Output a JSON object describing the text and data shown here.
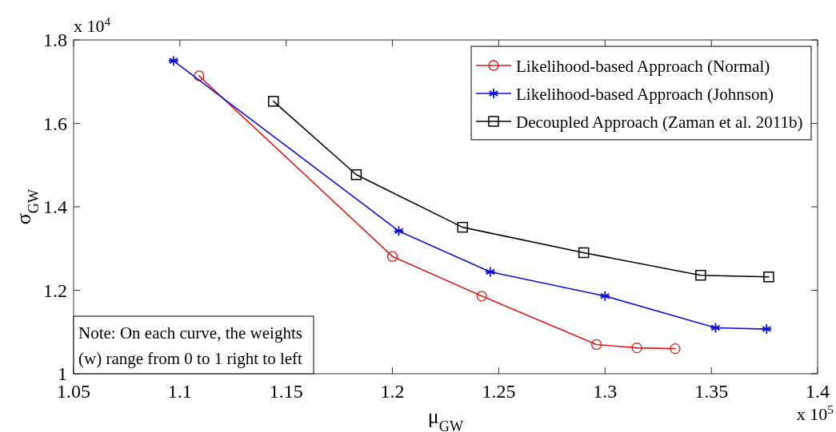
{
  "chart_data": {
    "type": "line",
    "xlabel": "μ$_{GW}$",
    "ylabel": "σ$_{GW}$",
    "xlim": [
      1.05,
      1.4
    ],
    "xticks": [
      1.05,
      1.1,
      1.15,
      1.2,
      1.25,
      1.3,
      1.35,
      1.4
    ],
    "ylim": [
      1,
      1.8
    ],
    "yticks": [
      1,
      1.2,
      1.4,
      1.6,
      1.8
    ],
    "grid": false,
    "legend": "top right",
    "line_style": "solid",
    "annotations": [
      "x 10$^{4}$",
      "x 10$^{5}$",
      "Note: On each curve, the weights\n(w) range from 0 to 1 right to left"
    ],
    "series": [
      {
        "name": "Likelihood-based Approach (Normal)",
        "color": "#d62020",
        "marker": "circle",
        "x": [
          1.109,
          1.2,
          1.242,
          1.296,
          1.315,
          1.333
        ],
        "values": [
          1.714,
          1.281,
          1.186,
          1.07,
          1.062,
          1.06
        ]
      },
      {
        "name": "Likelihood-based Approach (Johnson)",
        "color": "#1010d0",
        "marker": "cross",
        "x": [
          1.097,
          1.203,
          1.246,
          1.3,
          1.352,
          1.376
        ],
        "values": [
          1.75,
          1.342,
          1.244,
          1.186,
          1.11,
          1.107
        ]
      },
      {
        "name": "Decoupled Approach (Zaman et al. 2011b)",
        "color": "#000000",
        "marker": "square",
        "x": [
          1.144,
          1.183,
          1.233,
          1.29,
          1.345,
          1.377
        ],
        "values": [
          1.653,
          1.477,
          1.351,
          1.29,
          1.236,
          1.232
        ]
      }
    ]
  }
}
